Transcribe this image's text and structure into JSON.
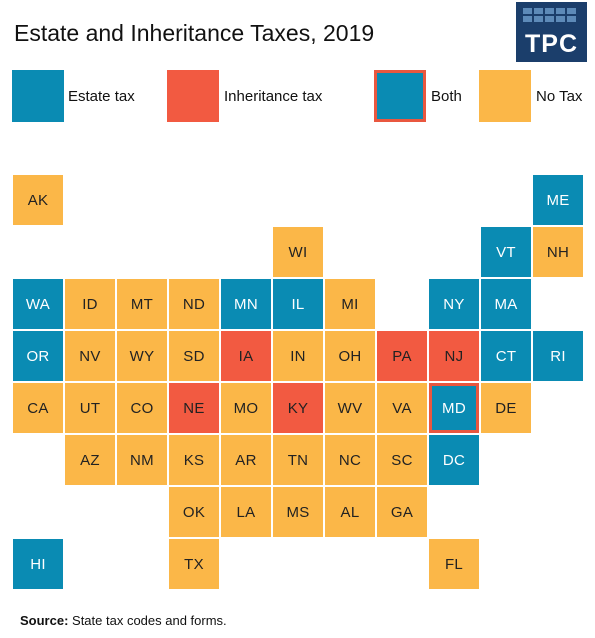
{
  "title": "Estate and Inheritance Taxes, 2019",
  "logo": {
    "text": "TPC"
  },
  "colors": {
    "estate": "#0a8bb3",
    "inherit": "#f25a41",
    "both": "#0a8bb3",
    "both_border": "#e9573f",
    "none": "#fbb748"
  },
  "legend": [
    {
      "key": "estate",
      "label": "Estate tax"
    },
    {
      "key": "inherit",
      "label": "Inheritance tax"
    },
    {
      "key": "both",
      "label": "Both"
    },
    {
      "key": "none",
      "label": "No Tax"
    }
  ],
  "states": [
    {
      "abbr": "AK",
      "status": "none",
      "col": 0,
      "row": 0
    },
    {
      "abbr": "ME",
      "status": "estate",
      "col": 10,
      "row": 0
    },
    {
      "abbr": "WI",
      "status": "none",
      "col": 5,
      "row": 1
    },
    {
      "abbr": "VT",
      "status": "estate",
      "col": 9,
      "row": 1
    },
    {
      "abbr": "NH",
      "status": "none",
      "col": 10,
      "row": 1
    },
    {
      "abbr": "WA",
      "status": "estate",
      "col": 0,
      "row": 2
    },
    {
      "abbr": "ID",
      "status": "none",
      "col": 1,
      "row": 2
    },
    {
      "abbr": "MT",
      "status": "none",
      "col": 2,
      "row": 2
    },
    {
      "abbr": "ND",
      "status": "none",
      "col": 3,
      "row": 2
    },
    {
      "abbr": "MN",
      "status": "estate",
      "col": 4,
      "row": 2
    },
    {
      "abbr": "IL",
      "status": "estate",
      "col": 5,
      "row": 2
    },
    {
      "abbr": "MI",
      "status": "none",
      "col": 6,
      "row": 2
    },
    {
      "abbr": "NY",
      "status": "estate",
      "col": 8,
      "row": 2
    },
    {
      "abbr": "MA",
      "status": "estate",
      "col": 9,
      "row": 2
    },
    {
      "abbr": "OR",
      "status": "estate",
      "col": 0,
      "row": 3
    },
    {
      "abbr": "NV",
      "status": "none",
      "col": 1,
      "row": 3
    },
    {
      "abbr": "WY",
      "status": "none",
      "col": 2,
      "row": 3
    },
    {
      "abbr": "SD",
      "status": "none",
      "col": 3,
      "row": 3
    },
    {
      "abbr": "IA",
      "status": "inherit",
      "col": 4,
      "row": 3
    },
    {
      "abbr": "IN",
      "status": "none",
      "col": 5,
      "row": 3
    },
    {
      "abbr": "OH",
      "status": "none",
      "col": 6,
      "row": 3
    },
    {
      "abbr": "PA",
      "status": "inherit",
      "col": 7,
      "row": 3
    },
    {
      "abbr": "NJ",
      "status": "inherit",
      "col": 8,
      "row": 3
    },
    {
      "abbr": "CT",
      "status": "estate",
      "col": 9,
      "row": 3
    },
    {
      "abbr": "RI",
      "status": "estate",
      "col": 10,
      "row": 3
    },
    {
      "abbr": "CA",
      "status": "none",
      "col": 0,
      "row": 4
    },
    {
      "abbr": "UT",
      "status": "none",
      "col": 1,
      "row": 4
    },
    {
      "abbr": "CO",
      "status": "none",
      "col": 2,
      "row": 4
    },
    {
      "abbr": "NE",
      "status": "inherit",
      "col": 3,
      "row": 4
    },
    {
      "abbr": "MO",
      "status": "none",
      "col": 4,
      "row": 4
    },
    {
      "abbr": "KY",
      "status": "inherit",
      "col": 5,
      "row": 4
    },
    {
      "abbr": "WV",
      "status": "none",
      "col": 6,
      "row": 4
    },
    {
      "abbr": "VA",
      "status": "none",
      "col": 7,
      "row": 4
    },
    {
      "abbr": "MD",
      "status": "both",
      "col": 8,
      "row": 4
    },
    {
      "abbr": "DE",
      "status": "none",
      "col": 9,
      "row": 4
    },
    {
      "abbr": "AZ",
      "status": "none",
      "col": 1,
      "row": 5
    },
    {
      "abbr": "NM",
      "status": "none",
      "col": 2,
      "row": 5
    },
    {
      "abbr": "KS",
      "status": "none",
      "col": 3,
      "row": 5
    },
    {
      "abbr": "AR",
      "status": "none",
      "col": 4,
      "row": 5
    },
    {
      "abbr": "TN",
      "status": "none",
      "col": 5,
      "row": 5
    },
    {
      "abbr": "NC",
      "status": "none",
      "col": 6,
      "row": 5
    },
    {
      "abbr": "SC",
      "status": "none",
      "col": 7,
      "row": 5
    },
    {
      "abbr": "DC",
      "status": "estate",
      "col": 8,
      "row": 5
    },
    {
      "abbr": "OK",
      "status": "none",
      "col": 3,
      "row": 6
    },
    {
      "abbr": "LA",
      "status": "none",
      "col": 4,
      "row": 6
    },
    {
      "abbr": "MS",
      "status": "none",
      "col": 5,
      "row": 6
    },
    {
      "abbr": "AL",
      "status": "none",
      "col": 6,
      "row": 6
    },
    {
      "abbr": "GA",
      "status": "none",
      "col": 7,
      "row": 6
    },
    {
      "abbr": "HI",
      "status": "estate",
      "col": 0,
      "row": 7
    },
    {
      "abbr": "TX",
      "status": "none",
      "col": 3,
      "row": 7
    },
    {
      "abbr": "FL",
      "status": "none",
      "col": 8,
      "row": 7
    }
  ],
  "source": {
    "label": "Source:",
    "text": " State tax codes and forms."
  }
}
